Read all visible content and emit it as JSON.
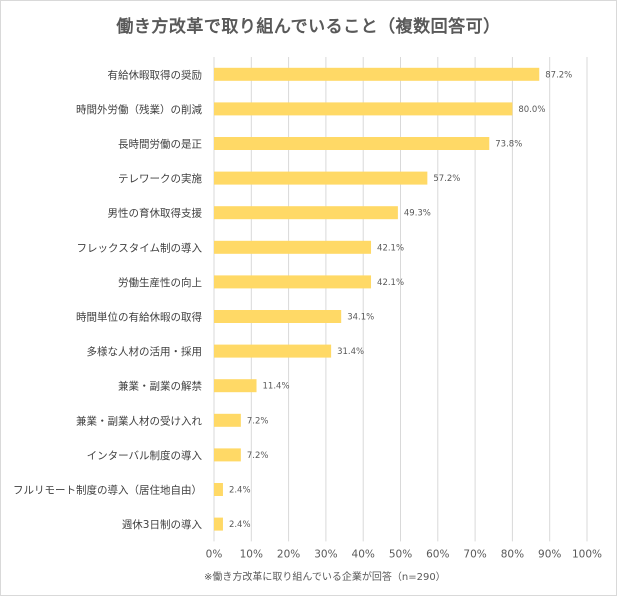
{
  "chart_data": {
    "type": "bar",
    "orientation": "horizontal",
    "title": "働き方改革で取り組んでいること（複数回答可）",
    "categories": [
      "有給休暇取得の奨励",
      "時間外労働（残業）の削減",
      "長時間労働の是正",
      "テレワークの実施",
      "男性の育休取得支援",
      "フレックスタイム制の導入",
      "労働生産性の向上",
      "時間単位の有給休暇の取得",
      "多様な人材の活用・採用",
      "兼業・副業の解禁",
      "兼業・副業人材の受け入れ",
      "インターバル制度の導入",
      "フルリモート制度の導入（居住地自由）",
      "週休3日制の導入"
    ],
    "values": [
      87.2,
      80.0,
      73.8,
      57.2,
      49.3,
      42.1,
      42.1,
      34.1,
      31.4,
      11.4,
      7.2,
      7.2,
      2.4,
      2.4
    ],
    "data_labels": [
      "87.2%",
      "80.0%",
      "73.8%",
      "57.2%",
      "49.3%",
      "42.1%",
      "42.1%",
      "34.1%",
      "31.4%",
      "11.4%",
      "7.2%",
      "7.2%",
      "2.4%",
      "2.4%"
    ],
    "xlim": [
      0,
      100
    ],
    "xticks": [
      "0%",
      "10%",
      "20%",
      "30%",
      "40%",
      "50%",
      "60%",
      "70%",
      "80%",
      "90%",
      "100%"
    ],
    "grid": true,
    "bar_color": "#ffd966",
    "footnote": "※働き方改革に取り組んでいる企業が回答（n=290）"
  }
}
